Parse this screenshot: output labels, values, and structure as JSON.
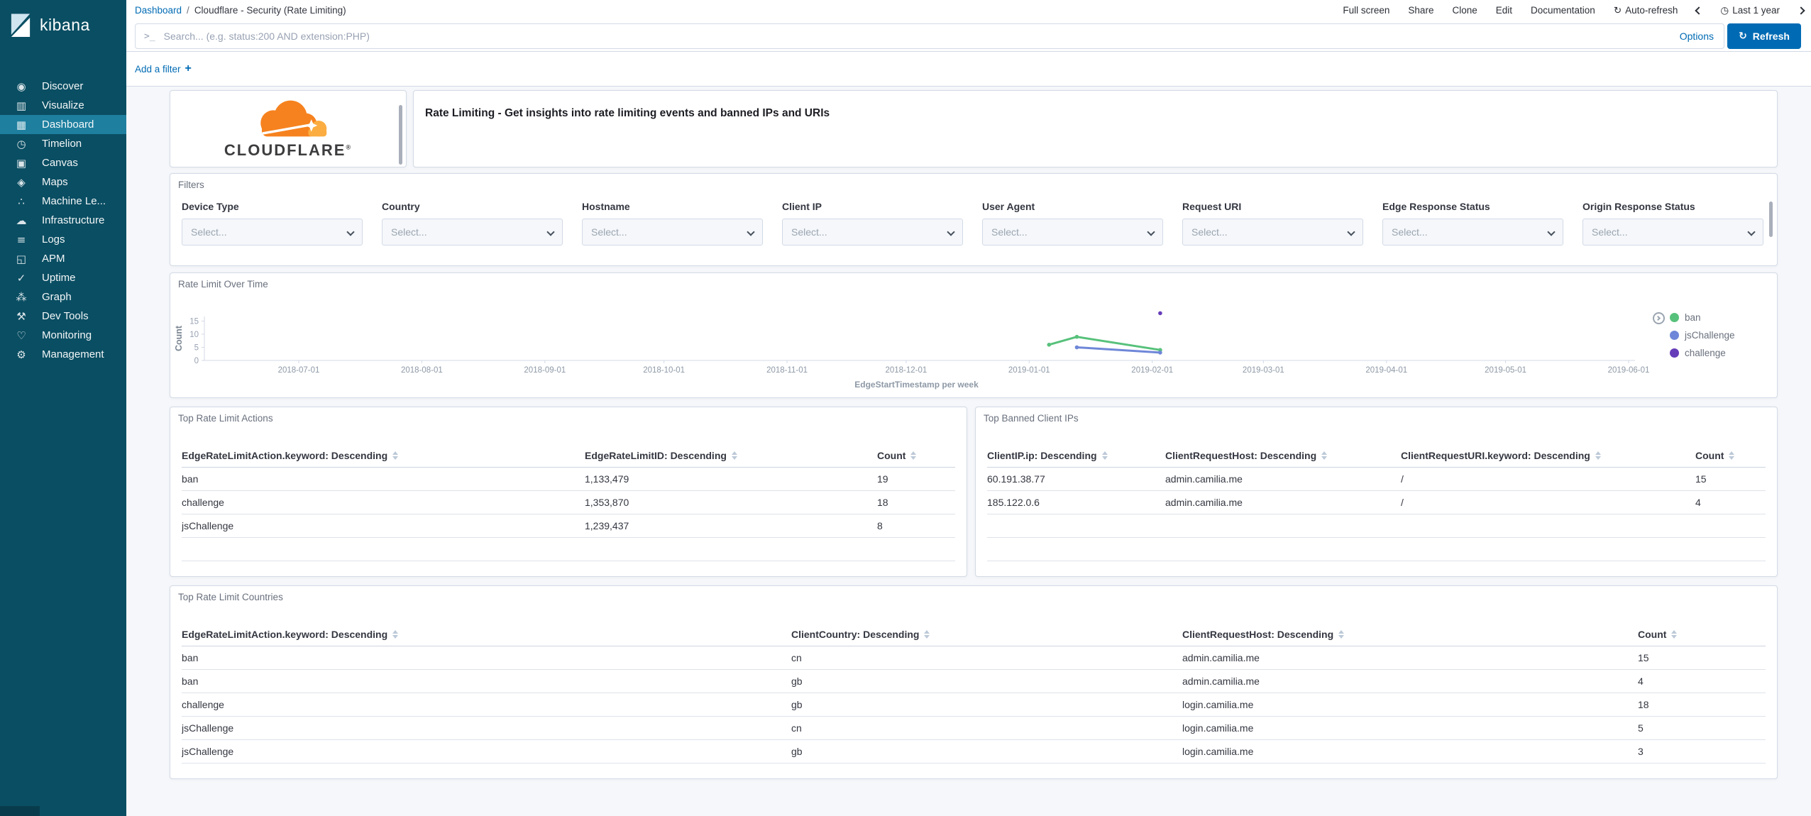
{
  "app": {
    "logo_text": "kibana"
  },
  "colors": {
    "accent": "#006bb4",
    "sidebar_bg": "#0a4e63",
    "sidebar_active": "#1e7f9f",
    "panel_border": "#d3dae6",
    "cloudflare_orange": "#f6821f",
    "cloudflare_light_orange": "#fbad41"
  },
  "icons": {
    "query_prompt": ">_",
    "plus": "+",
    "refresh_glyph": "↻",
    "clock_glyph": "◷"
  },
  "sidebar": {
    "items": [
      {
        "label": "Discover",
        "icon": "discover-icon",
        "glyph": "◉",
        "active": false
      },
      {
        "label": "Visualize",
        "icon": "visualize-icon",
        "glyph": "▥",
        "active": false
      },
      {
        "label": "Dashboard",
        "icon": "dashboard-icon",
        "glyph": "▦",
        "active": true
      },
      {
        "label": "Timelion",
        "icon": "timelion-icon",
        "glyph": "◷",
        "active": false
      },
      {
        "label": "Canvas",
        "icon": "canvas-icon",
        "glyph": "▣",
        "active": false
      },
      {
        "label": "Maps",
        "icon": "maps-icon",
        "glyph": "◈",
        "active": false
      },
      {
        "label": "Machine Le...",
        "icon": "machine-learning-icon",
        "glyph": "∴",
        "active": false
      },
      {
        "label": "Infrastructure",
        "icon": "infrastructure-icon",
        "glyph": "☁",
        "active": false
      },
      {
        "label": "Logs",
        "icon": "logs-icon",
        "glyph": "≡",
        "active": false
      },
      {
        "label": "APM",
        "icon": "apm-icon",
        "glyph": "◱",
        "active": false
      },
      {
        "label": "Uptime",
        "icon": "uptime-icon",
        "glyph": "✓",
        "active": false
      },
      {
        "label": "Graph",
        "icon": "graph-icon",
        "glyph": "⁂",
        "active": false
      },
      {
        "label": "Dev Tools",
        "icon": "dev-tools-icon",
        "glyph": "⚒",
        "active": false
      },
      {
        "label": "Monitoring",
        "icon": "monitoring-icon",
        "glyph": "♡",
        "active": false
      },
      {
        "label": "Management",
        "icon": "management-icon",
        "glyph": "⚙",
        "active": false
      }
    ]
  },
  "topbar": {
    "breadcrumb": {
      "link": "Dashboard",
      "separator": "/",
      "current": "Cloudflare - Security (Rate Limiting)"
    },
    "actions": [
      "Full screen",
      "Share",
      "Clone",
      "Edit",
      "Documentation"
    ],
    "auto_refresh_label": "Auto-refresh",
    "time_range_label": "Last 1 year"
  },
  "searchbar": {
    "placeholder": "Search... (e.g. status:200 AND extension:PHP)",
    "options_label": "Options",
    "refresh_label": "Refresh"
  },
  "filter_bar": {
    "add_filter_label": "Add a filter"
  },
  "panels": {
    "logo": {
      "brand": "CLOUDFLARE",
      "registered_mark": "®"
    },
    "title": {
      "text": "Rate Limiting - Get insights into rate limiting events and banned IPs and URIs"
    },
    "filters": {
      "title": "Filters",
      "select_placeholder": "Select...",
      "fields": [
        "Device Type",
        "Country",
        "Hostname",
        "Client IP",
        "User Agent",
        "Request URI",
        "Edge Response Status",
        "Origin Response Status"
      ]
    },
    "chart": {
      "title": "Rate Limit Over Time"
    },
    "actions_table": {
      "title": "Top Rate Limit Actions",
      "columns": [
        "EdgeRateLimitAction.keyword: Descending",
        "EdgeRateLimitID: Descending",
        "Count"
      ],
      "rows": [
        [
          "ban",
          "1,133,479",
          "19"
        ],
        [
          "challenge",
          "1,353,870",
          "18"
        ],
        [
          "jsChallenge",
          "1,239,437",
          "8"
        ]
      ]
    },
    "banned_table": {
      "title": "Top Banned Client IPs",
      "columns": [
        "ClientIP.ip: Descending",
        "ClientRequestHost: Descending",
        "ClientRequestURI.keyword: Descending",
        "Count"
      ],
      "rows": [
        [
          "60.191.38.77",
          "admin.camilia.me",
          "/",
          "15"
        ],
        [
          "185.122.0.6",
          "admin.camilia.me",
          "/",
          "4"
        ]
      ]
    },
    "countries_table": {
      "title": "Top Rate Limit Countries",
      "columns": [
        "EdgeRateLimitAction.keyword: Descending",
        "ClientCountry: Descending",
        "ClientRequestHost: Descending",
        "Count"
      ],
      "rows": [
        [
          "ban",
          "cn",
          "admin.camilia.me",
          "15"
        ],
        [
          "ban",
          "gb",
          "admin.camilia.me",
          "4"
        ],
        [
          "challenge",
          "gb",
          "login.camilia.me",
          "18"
        ],
        [
          "jsChallenge",
          "cn",
          "login.camilia.me",
          "5"
        ],
        [
          "jsChallenge",
          "gb",
          "login.camilia.me",
          "3"
        ]
      ]
    }
  },
  "chart_data": {
    "type": "line",
    "title": "Rate Limit Over Time",
    "xlabel": "EdgeStartTimestamp per week",
    "ylabel": "Count",
    "y_ticks": [
      0,
      5,
      10,
      15
    ],
    "ylim": [
      0,
      19
    ],
    "grid": false,
    "legend_position": "right",
    "x_ticks": [
      "2018-07-01",
      "2018-08-01",
      "2018-09-01",
      "2018-10-01",
      "2018-11-01",
      "2018-12-01",
      "2019-01-01",
      "2019-02-01",
      "2019-03-01",
      "2019-04-01",
      "2019-05-01",
      "2019-06-01"
    ],
    "series": [
      {
        "name": "ban",
        "color": "#57c17b",
        "points": [
          [
            "2019-01-06",
            6
          ],
          [
            "2019-01-13",
            9
          ],
          [
            "2019-02-03",
            4
          ]
        ]
      },
      {
        "name": "jsChallenge",
        "color": "#6f87d8",
        "points": [
          [
            "2019-01-13",
            5
          ],
          [
            "2019-02-03",
            3
          ]
        ]
      },
      {
        "name": "challenge",
        "color": "#663db8",
        "points": [
          [
            "2019-02-03",
            18
          ]
        ]
      }
    ]
  }
}
